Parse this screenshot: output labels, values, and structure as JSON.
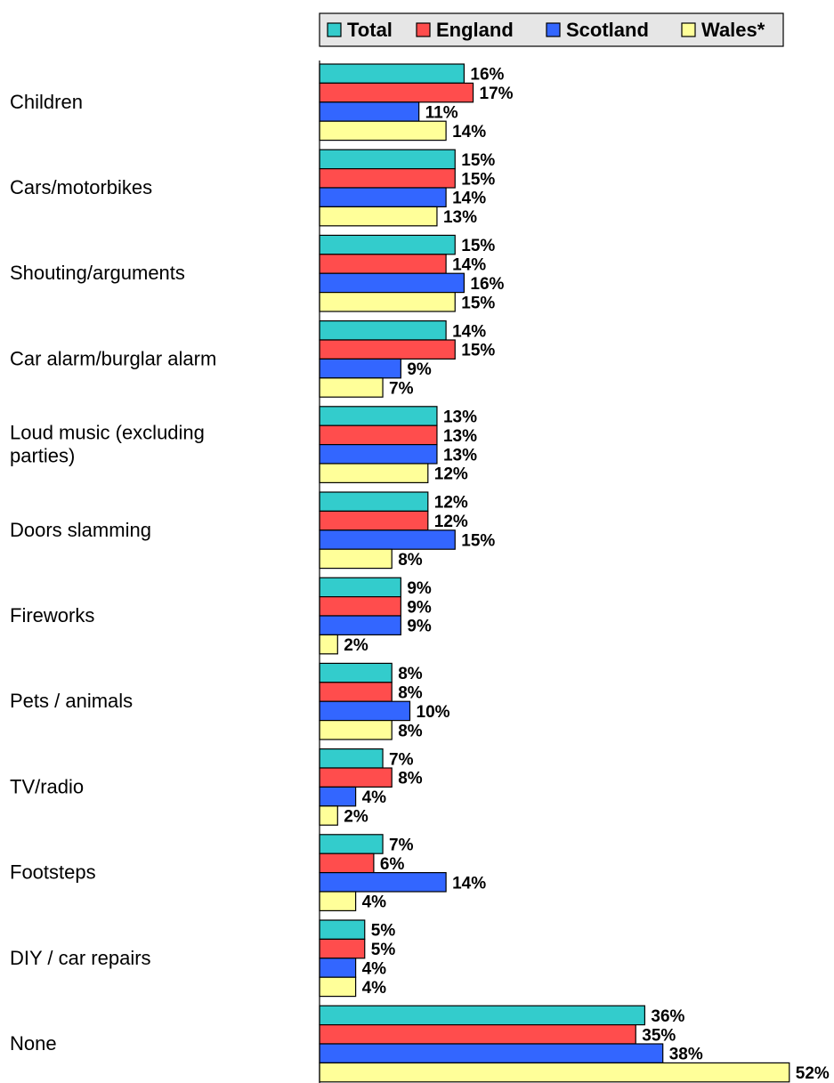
{
  "chart_data": {
    "type": "bar",
    "orientation": "horizontal",
    "categories": [
      "Children",
      "Cars/motorbikes",
      "Shouting/arguments",
      "Car alarm/burglar alarm",
      "Loud music (excluding parties)",
      "Doors slamming",
      "Fireworks",
      "Pets / animals",
      "TV/radio",
      "Footsteps",
      "DIY / car repairs",
      "None"
    ],
    "series": [
      {
        "name": "Total",
        "color": "#33cccc",
        "values": [
          16,
          15,
          15,
          14,
          13,
          12,
          9,
          8,
          7,
          7,
          5,
          36
        ]
      },
      {
        "name": "England",
        "color": "#ff4d4d",
        "values": [
          17,
          15,
          14,
          15,
          13,
          12,
          9,
          8,
          8,
          6,
          5,
          35
        ]
      },
      {
        "name": "Scotland",
        "color": "#3366ff",
        "values": [
          11,
          14,
          16,
          9,
          13,
          15,
          9,
          10,
          4,
          14,
          4,
          38
        ]
      },
      {
        "name": "Wales*",
        "color": "#ffff99",
        "values": [
          14,
          13,
          15,
          7,
          12,
          8,
          2,
          8,
          2,
          4,
          4,
          52
        ]
      }
    ],
    "value_suffix": "%",
    "legend_position": "top",
    "grid": false
  }
}
